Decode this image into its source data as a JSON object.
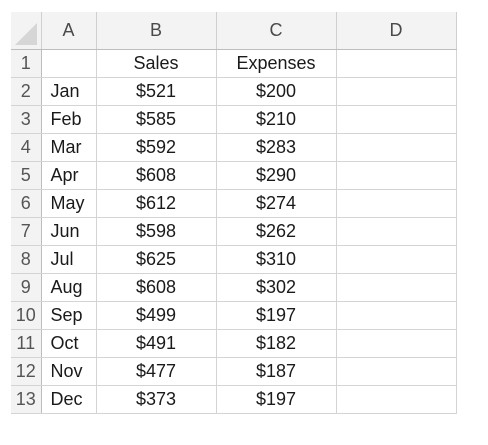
{
  "columns": [
    "A",
    "B",
    "C",
    "D"
  ],
  "headers": {
    "row_number": "1",
    "a": "",
    "b": "Sales",
    "c": "Expenses",
    "d": ""
  },
  "rows": [
    {
      "row": "2",
      "month": "Jan",
      "sales": "$521",
      "expenses": "$200"
    },
    {
      "row": "3",
      "month": "Feb",
      "sales": "$585",
      "expenses": "$210"
    },
    {
      "row": "4",
      "month": "Mar",
      "sales": "$592",
      "expenses": "$283"
    },
    {
      "row": "5",
      "month": "Apr",
      "sales": "$608",
      "expenses": "$290"
    },
    {
      "row": "6",
      "month": "May",
      "sales": "$612",
      "expenses": "$274"
    },
    {
      "row": "7",
      "month": "Jun",
      "sales": "$598",
      "expenses": "$262"
    },
    {
      "row": "8",
      "month": "Jul",
      "sales": "$625",
      "expenses": "$310"
    },
    {
      "row": "9",
      "month": "Aug",
      "sales": "$608",
      "expenses": "$302"
    },
    {
      "row": "10",
      "month": "Sep",
      "sales": "$499",
      "expenses": "$197"
    },
    {
      "row": "11",
      "month": "Oct",
      "sales": "$491",
      "expenses": "$182"
    },
    {
      "row": "12",
      "month": "Nov",
      "sales": "$477",
      "expenses": "$187"
    },
    {
      "row": "13",
      "month": "Dec",
      "sales": "$373",
      "expenses": "$197"
    }
  ]
}
